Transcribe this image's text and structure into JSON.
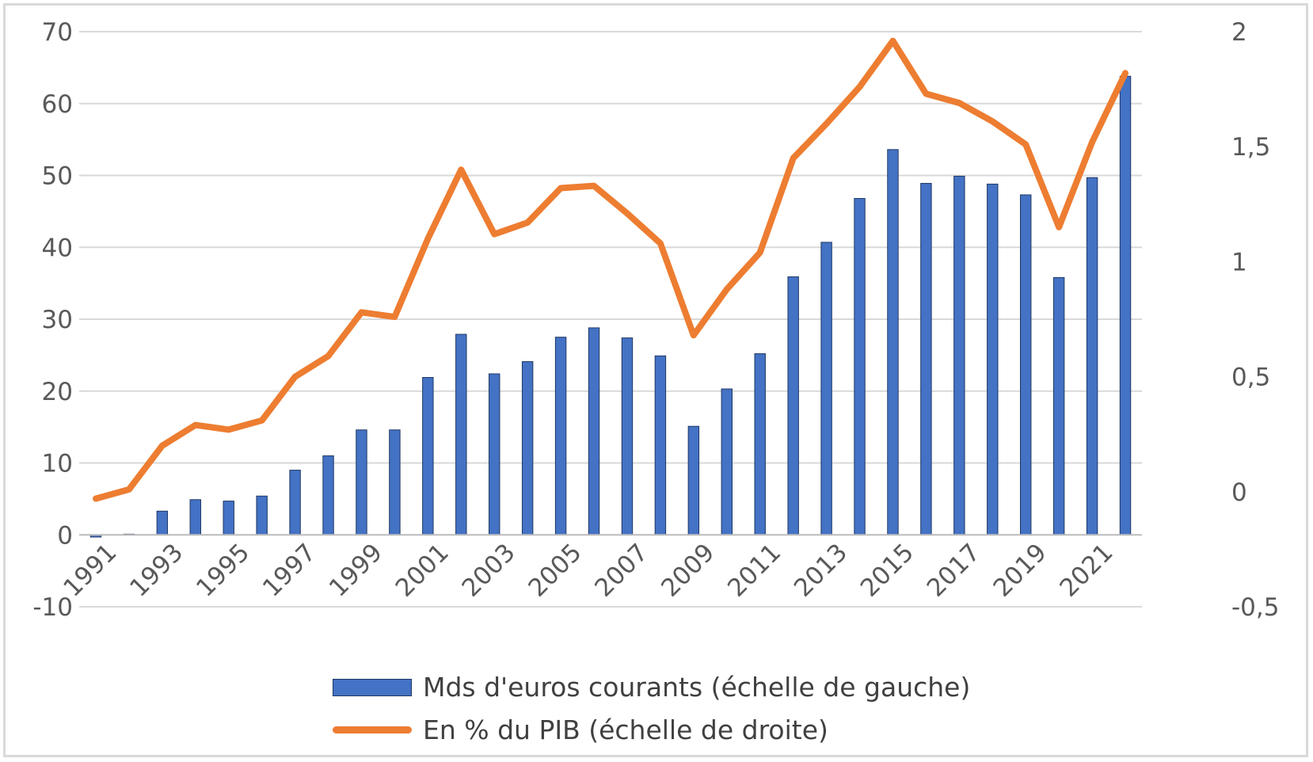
{
  "chart_data": {
    "type": "bar",
    "x": [
      "1991",
      "1992",
      "1993",
      "1994",
      "1995",
      "1996",
      "1997",
      "1998",
      "1999",
      "2000",
      "2001",
      "2002",
      "2003",
      "2004",
      "2005",
      "2006",
      "2007",
      "2008",
      "2009",
      "2010",
      "2011",
      "2012",
      "2013",
      "2014",
      "2015",
      "2016",
      "2017",
      "2018",
      "2019",
      "2020",
      "2021",
      "2022"
    ],
    "x_tick_labels": [
      "1991",
      "1993",
      "1995",
      "1997",
      "1999",
      "2001",
      "2003",
      "2005",
      "2007",
      "2009",
      "2011",
      "2013",
      "2015",
      "2017",
      "2019",
      "2021"
    ],
    "series": [
      {
        "name": "Mds d'euros courants (échelle de gauche)",
        "type": "bar",
        "axis": "left",
        "color": "#4472c4",
        "values": [
          -0.3,
          0.1,
          3.3,
          4.9,
          4.7,
          5.4,
          9.0,
          11.0,
          14.6,
          14.6,
          21.9,
          27.9,
          22.4,
          24.1,
          27.5,
          28.8,
          27.4,
          24.9,
          15.1,
          20.3,
          25.2,
          35.9,
          40.7,
          46.8,
          53.6,
          48.9,
          49.9,
          48.8,
          47.3,
          35.8,
          49.7,
          63.8
        ]
      },
      {
        "name": "En % du PIB (échelle de droite)",
        "type": "line",
        "axis": "right",
        "color": "#ed7d31",
        "values": [
          -0.03,
          0.01,
          0.2,
          0.29,
          0.27,
          0.31,
          0.5,
          0.59,
          0.78,
          0.76,
          1.1,
          1.4,
          1.12,
          1.17,
          1.32,
          1.33,
          1.21,
          1.08,
          0.68,
          0.88,
          1.04,
          1.45,
          1.6,
          1.76,
          1.96,
          1.73,
          1.69,
          1.61,
          1.51,
          1.15,
          1.52,
          1.82
        ]
      }
    ],
    "y_left": {
      "ylim": [
        -10,
        70
      ],
      "ticks": [
        "-10",
        "0",
        "10",
        "20",
        "30",
        "40",
        "50",
        "60",
        "70"
      ]
    },
    "y_right": {
      "ylim": [
        -0.5,
        2
      ],
      "ticks": [
        "-0,5",
        "0",
        "0,5",
        "1",
        "1,5",
        "2"
      ]
    },
    "grid": true,
    "legend_placement": "bottom"
  }
}
